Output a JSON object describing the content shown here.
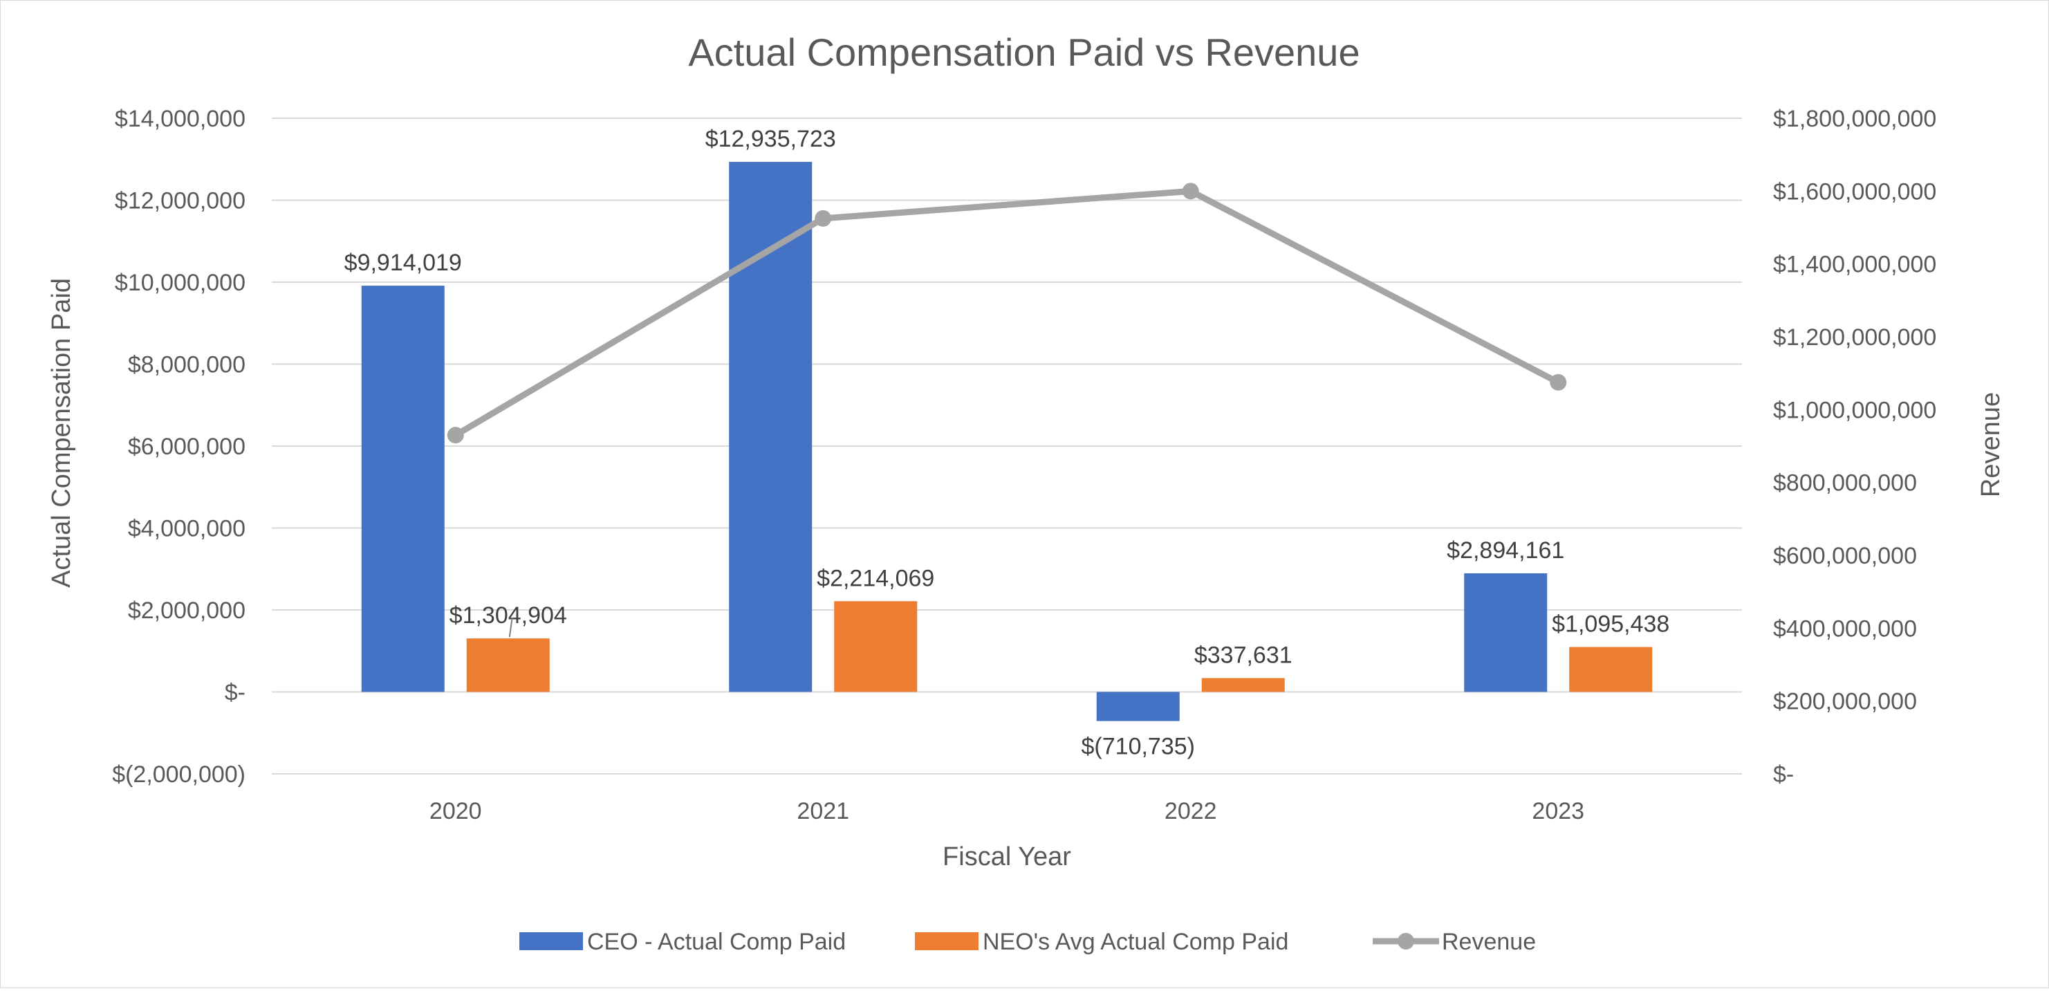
{
  "chart_data": {
    "type": "bar",
    "title": "Actual Compensation Paid vs Revenue",
    "xlabel": "Fiscal Year",
    "ylabel": "Actual Compensation Paid",
    "y2label": "Revenue",
    "categories": [
      "2020",
      "2021",
      "2022",
      "2023"
    ],
    "ylim": [
      -2000000,
      14000000
    ],
    "y2lim": [
      0,
      1800000000
    ],
    "y_ticks": [
      "$14,000,000",
      "$12,000,000",
      "$10,000,000",
      "$8,000,000",
      "$6,000,000",
      "$4,000,000",
      "$2,000,000",
      "$-",
      "$(2,000,000)"
    ],
    "y2_ticks": [
      "$1,800,000,000",
      "$1,600,000,000",
      "$1,400,000,000",
      "$1,200,000,000",
      "$1,000,000,000",
      "$800,000,000",
      "$600,000,000",
      "$400,000,000",
      "$200,000,000",
      "$-"
    ],
    "grid": true,
    "legend_position": "bottom",
    "series": [
      {
        "name": "CEO - Actual Comp Paid",
        "type": "bar",
        "axis": "left",
        "color": "#4472c4",
        "values": [
          9914019,
          12935723,
          -710735,
          2894161
        ],
        "labels": [
          "$9,914,019",
          "$12,935,723",
          "$(710,735)",
          "$2,894,161"
        ]
      },
      {
        "name": "NEO's Avg Actual Comp Paid",
        "type": "bar",
        "axis": "left",
        "color": "#ed7d31",
        "values": [
          1304904,
          2214069,
          337631,
          1095438
        ],
        "labels": [
          "$1,304,904",
          "$2,214,069",
          "$337,631",
          "$1,095,438"
        ]
      },
      {
        "name": "Revenue",
        "type": "line",
        "axis": "right",
        "color": "#a5a5a5",
        "values": [
          930000000,
          1525000000,
          1600000000,
          1075000000
        ]
      }
    ]
  }
}
